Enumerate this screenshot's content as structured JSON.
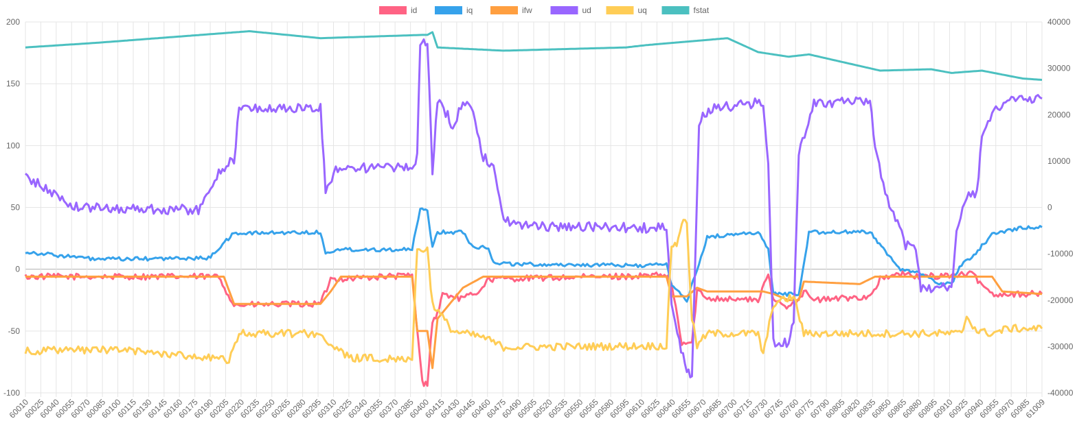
{
  "chart_data": {
    "type": "line",
    "legend_position": "top",
    "grid": true,
    "x_range": [
      60010,
      61009
    ],
    "x_tick_labels": [
      "60010",
      "60025",
      "60040",
      "60055",
      "60070",
      "60085",
      "60100",
      "60115",
      "60130",
      "60145",
      "60160",
      "60175",
      "60190",
      "60205",
      "60220",
      "60235",
      "60250",
      "60265",
      "60280",
      "60295",
      "60310",
      "60325",
      "60340",
      "60355",
      "60370",
      "60385",
      "60400",
      "60415",
      "60430",
      "60445",
      "60460",
      "60475",
      "60490",
      "60505",
      "60520",
      "60535",
      "60550",
      "60565",
      "60580",
      "60595",
      "60610",
      "60625",
      "60640",
      "60655",
      "60670",
      "60685",
      "60700",
      "60715",
      "60730",
      "60745",
      "60760",
      "60775",
      "60790",
      "60805",
      "60820",
      "60835",
      "60850",
      "60865",
      "60880",
      "60895",
      "60910",
      "60925",
      "60940",
      "60955",
      "60970",
      "60985",
      "61009"
    ],
    "y_left": {
      "min": -100,
      "max": 200,
      "ticks": [
        "200",
        "150",
        "100",
        "50",
        "0",
        "-50",
        "-100"
      ]
    },
    "y_right": {
      "min": -40000,
      "max": 40000,
      "ticks": [
        "40000",
        "30000",
        "20000",
        "10000",
        "0",
        "-10000",
        "-20000",
        "-30000",
        "-40000"
      ]
    },
    "series": [
      {
        "name": "id",
        "color": "#ff6384",
        "axis": "left",
        "noise": 2.5,
        "points": [
          [
            60010,
            -6
          ],
          [
            60200,
            -6
          ],
          [
            60215,
            -29
          ],
          [
            60300,
            -28
          ],
          [
            60310,
            -8
          ],
          [
            60390,
            -5
          ],
          [
            60400,
            -92
          ],
          [
            60405,
            -92
          ],
          [
            60410,
            -42
          ],
          [
            60415,
            -36
          ],
          [
            60420,
            -20
          ],
          [
            60440,
            -24
          ],
          [
            60455,
            -18
          ],
          [
            60465,
            -8
          ],
          [
            60640,
            -5
          ],
          [
            60645,
            -12
          ],
          [
            60655,
            -60
          ],
          [
            60665,
            -60
          ],
          [
            60670,
            -18
          ],
          [
            60680,
            -23
          ],
          [
            60730,
            -25
          ],
          [
            60740,
            -5
          ],
          [
            60745,
            -25
          ],
          [
            60760,
            -30
          ],
          [
            60770,
            -23
          ],
          [
            60775,
            -18
          ],
          [
            60785,
            -25
          ],
          [
            60840,
            -22
          ],
          [
            60850,
            -8
          ],
          [
            60870,
            -4
          ],
          [
            60890,
            -6
          ],
          [
            60940,
            -4
          ],
          [
            60960,
            -20
          ],
          [
            61009,
            -20
          ]
        ]
      },
      {
        "name": "iq",
        "color": "#36a2eb",
        "axis": "left",
        "noise": 1.5,
        "points": [
          [
            60010,
            14
          ],
          [
            60080,
            8
          ],
          [
            60190,
            9
          ],
          [
            60200,
            17
          ],
          [
            60215,
            29
          ],
          [
            60300,
            30
          ],
          [
            60305,
            12
          ],
          [
            60315,
            16
          ],
          [
            60390,
            16
          ],
          [
            60398,
            48
          ],
          [
            60405,
            48
          ],
          [
            60410,
            18
          ],
          [
            60415,
            30
          ],
          [
            60440,
            30
          ],
          [
            60450,
            18
          ],
          [
            60465,
            18
          ],
          [
            60470,
            5
          ],
          [
            60500,
            4
          ],
          [
            60620,
            3
          ],
          [
            60640,
            4
          ],
          [
            60645,
            -12
          ],
          [
            60660,
            -26
          ],
          [
            60680,
            26
          ],
          [
            60730,
            30
          ],
          [
            60740,
            16
          ],
          [
            60745,
            -20
          ],
          [
            60770,
            -20
          ],
          [
            60780,
            30
          ],
          [
            60840,
            30
          ],
          [
            60855,
            15
          ],
          [
            60870,
            0
          ],
          [
            60890,
            -4
          ],
          [
            60910,
            -12
          ],
          [
            60920,
            -12
          ],
          [
            60930,
            4
          ],
          [
            60940,
            10
          ],
          [
            60960,
            28
          ],
          [
            60990,
            34
          ],
          [
            61009,
            34
          ]
        ]
      },
      {
        "name": "ifw",
        "color": "#ff9f40",
        "axis": "left",
        "noise": 0,
        "points": [
          [
            60010,
            -6
          ],
          [
            60205,
            -6
          ],
          [
            60215,
            -28
          ],
          [
            60300,
            -28
          ],
          [
            60310,
            -18
          ],
          [
            60320,
            -6
          ],
          [
            60390,
            -6
          ],
          [
            60395,
            -50
          ],
          [
            60405,
            -50
          ],
          [
            60410,
            -80
          ],
          [
            60415,
            -40
          ],
          [
            60440,
            -15
          ],
          [
            60460,
            -6
          ],
          [
            60640,
            -6
          ],
          [
            60645,
            -22
          ],
          [
            60660,
            -22
          ],
          [
            60670,
            -15
          ],
          [
            60680,
            -18
          ],
          [
            60735,
            -18
          ],
          [
            60745,
            -20
          ],
          [
            60760,
            -25
          ],
          [
            60770,
            -25
          ],
          [
            60775,
            -10
          ],
          [
            60830,
            -12
          ],
          [
            60845,
            -6
          ],
          [
            60930,
            -6
          ],
          [
            60960,
            -6
          ],
          [
            60970,
            -18
          ],
          [
            61009,
            -20
          ]
        ]
      },
      {
        "name": "ud",
        "color": "#9966ff",
        "axis": "left",
        "noise": 4,
        "points": [
          [
            60010,
            75
          ],
          [
            60040,
            60
          ],
          [
            60060,
            50
          ],
          [
            60180,
            48
          ],
          [
            60190,
            60
          ],
          [
            60200,
            80
          ],
          [
            60215,
            88
          ],
          [
            60220,
            130
          ],
          [
            60300,
            130
          ],
          [
            60305,
            62
          ],
          [
            60315,
            82
          ],
          [
            60390,
            82
          ],
          [
            60395,
            90
          ],
          [
            60398,
            185
          ],
          [
            60405,
            185
          ],
          [
            60410,
            78
          ],
          [
            60415,
            135
          ],
          [
            60425,
            125
          ],
          [
            60430,
            115
          ],
          [
            60440,
            135
          ],
          [
            60450,
            130
          ],
          [
            60460,
            90
          ],
          [
            60470,
            85
          ],
          [
            60480,
            40
          ],
          [
            60500,
            35
          ],
          [
            60640,
            33
          ],
          [
            60645,
            -30
          ],
          [
            60660,
            -85
          ],
          [
            60665,
            -85
          ],
          [
            60672,
            120
          ],
          [
            60685,
            130
          ],
          [
            60735,
            135
          ],
          [
            60740,
            85
          ],
          [
            60745,
            -60
          ],
          [
            60760,
            -60
          ],
          [
            60765,
            -40
          ],
          [
            60770,
            95
          ],
          [
            60785,
            135
          ],
          [
            60840,
            135
          ],
          [
            60845,
            100
          ],
          [
            60855,
            60
          ],
          [
            60865,
            40
          ],
          [
            60875,
            20
          ],
          [
            60885,
            18
          ],
          [
            60890,
            -15
          ],
          [
            60920,
            -15
          ],
          [
            60925,
            30
          ],
          [
            60935,
            60
          ],
          [
            60945,
            60
          ],
          [
            60950,
            110
          ],
          [
            60960,
            125
          ],
          [
            60975,
            138
          ],
          [
            61009,
            138
          ]
        ]
      },
      {
        "name": "uq",
        "color": "#ffcd56",
        "axis": "left",
        "noise": 3,
        "points": [
          [
            60010,
            -66
          ],
          [
            60100,
            -65
          ],
          [
            60200,
            -72
          ],
          [
            60210,
            -75
          ],
          [
            60220,
            -52
          ],
          [
            60300,
            -52
          ],
          [
            60310,
            -62
          ],
          [
            60330,
            -72
          ],
          [
            60390,
            -72
          ],
          [
            60395,
            16
          ],
          [
            60405,
            16
          ],
          [
            60410,
            -28
          ],
          [
            60430,
            -50
          ],
          [
            60460,
            -55
          ],
          [
            60480,
            -63
          ],
          [
            60640,
            -62
          ],
          [
            60645,
            20
          ],
          [
            60650,
            20
          ],
          [
            60655,
            38
          ],
          [
            60660,
            38
          ],
          [
            60665,
            -40
          ],
          [
            60670,
            -62
          ],
          [
            60680,
            -52
          ],
          [
            60730,
            -52
          ],
          [
            60735,
            -70
          ],
          [
            60745,
            -28
          ],
          [
            60765,
            -22
          ],
          [
            60775,
            -52
          ],
          [
            60840,
            -52
          ],
          [
            60930,
            -52
          ],
          [
            60935,
            -38
          ],
          [
            60945,
            -50
          ],
          [
            60960,
            -52
          ],
          [
            60975,
            -48
          ],
          [
            61009,
            -48
          ]
        ]
      },
      {
        "name": "fstat",
        "color": "#4bc0c0",
        "axis": "right",
        "noise": 0,
        "points": [
          [
            60010,
            34500
          ],
          [
            60080,
            35500
          ],
          [
            60170,
            37000
          ],
          [
            60230,
            38000
          ],
          [
            60300,
            36500
          ],
          [
            60400,
            37200
          ],
          [
            60405,
            37200
          ],
          [
            60410,
            37800
          ],
          [
            60415,
            34500
          ],
          [
            60480,
            33800
          ],
          [
            60600,
            34500
          ],
          [
            60620,
            35000
          ],
          [
            60700,
            36500
          ],
          [
            60730,
            33500
          ],
          [
            60760,
            32500
          ],
          [
            60780,
            33000
          ],
          [
            60820,
            31000
          ],
          [
            60850,
            29500
          ],
          [
            60900,
            29800
          ],
          [
            60920,
            29000
          ],
          [
            60950,
            29500
          ],
          [
            60990,
            27800
          ],
          [
            61009,
            27500
          ]
        ]
      }
    ]
  }
}
